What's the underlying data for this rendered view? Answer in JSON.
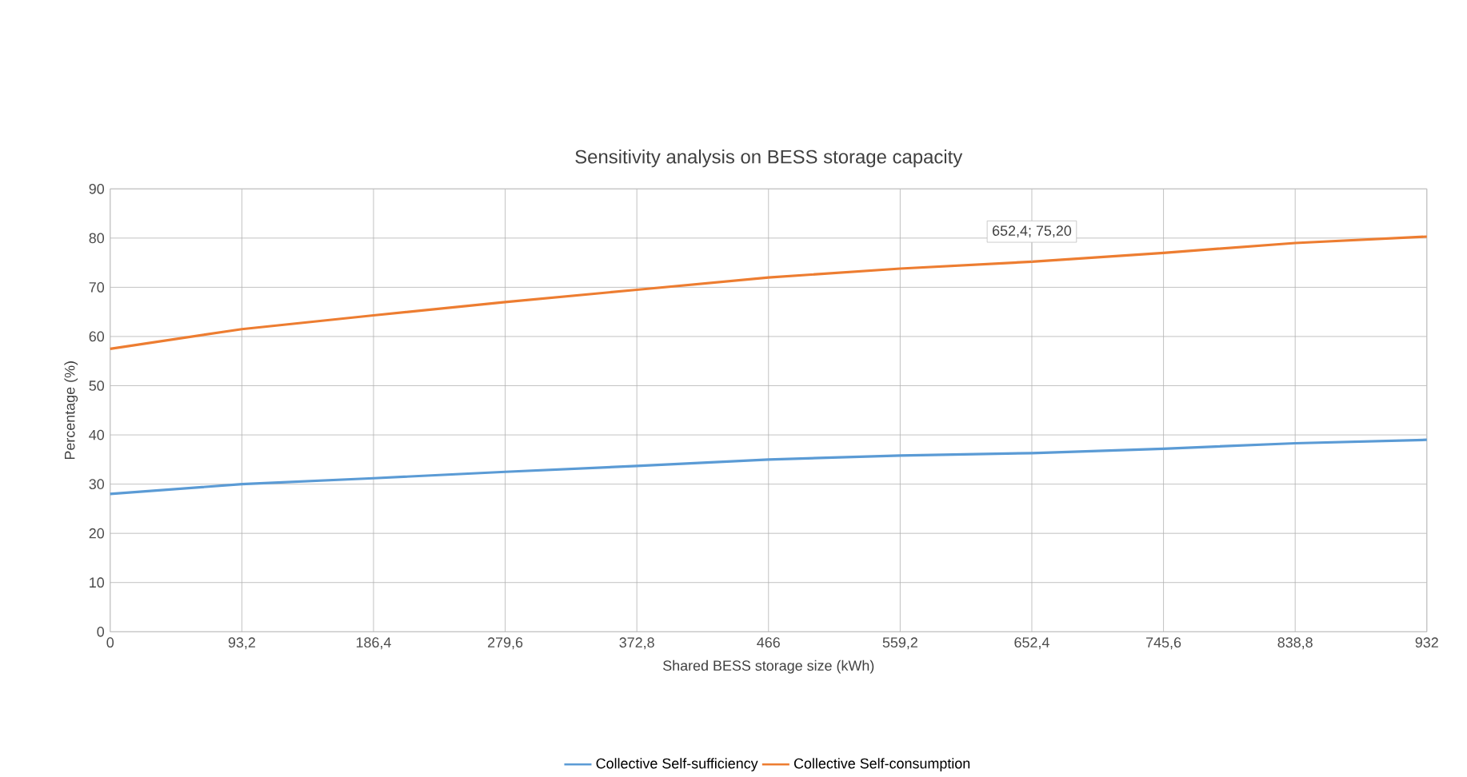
{
  "chart_data": {
    "type": "line",
    "title": "Sensitivity analysis on BESS storage capacity",
    "xlabel": "Shared BESS storage size (kWh)",
    "ylabel": "Percentage (%)",
    "x": [
      0,
      93.2,
      186.4,
      279.6,
      372.8,
      466,
      559.2,
      652.4,
      745.6,
      838.8,
      932
    ],
    "series": [
      {
        "name": "Collective Self-sufficiency",
        "color": "#5b9bd5",
        "values": [
          28,
          30,
          31.2,
          32.5,
          33.7,
          35,
          35.8,
          36.3,
          37.2,
          38.3,
          39
        ]
      },
      {
        "name": "Collective Self-consumption",
        "color": "#ed7d31",
        "values": [
          57.5,
          61.5,
          64.3,
          67,
          69.5,
          72,
          73.8,
          75.2,
          77,
          79,
          80.3
        ]
      }
    ],
    "xlim": [
      0,
      932
    ],
    "ylim": [
      0,
      90
    ],
    "xticks": [
      0,
      {
        "value": 93.2,
        "label": "93,2"
      },
      {
        "value": 186.4,
        "label": "186,4"
      },
      {
        "value": 279.6,
        "label": "279,6"
      },
      {
        "value": 372.8,
        "label": "372,8"
      },
      466,
      {
        "value": 559.2,
        "label": "559,2"
      },
      {
        "value": 652.4,
        "label": "652,4"
      },
      {
        "value": 745.6,
        "label": "745,6"
      },
      {
        "value": 838.8,
        "label": "838,8"
      },
      932
    ],
    "yticks": [
      0,
      10,
      20,
      30,
      40,
      50,
      60,
      70,
      80,
      90
    ],
    "annotations": [
      {
        "text": "652,4; 75,20",
        "x": 652.4,
        "y": 75.2
      }
    ],
    "grid": true,
    "legend": "bottom",
    "line_style": "solid",
    "marker": "none"
  }
}
